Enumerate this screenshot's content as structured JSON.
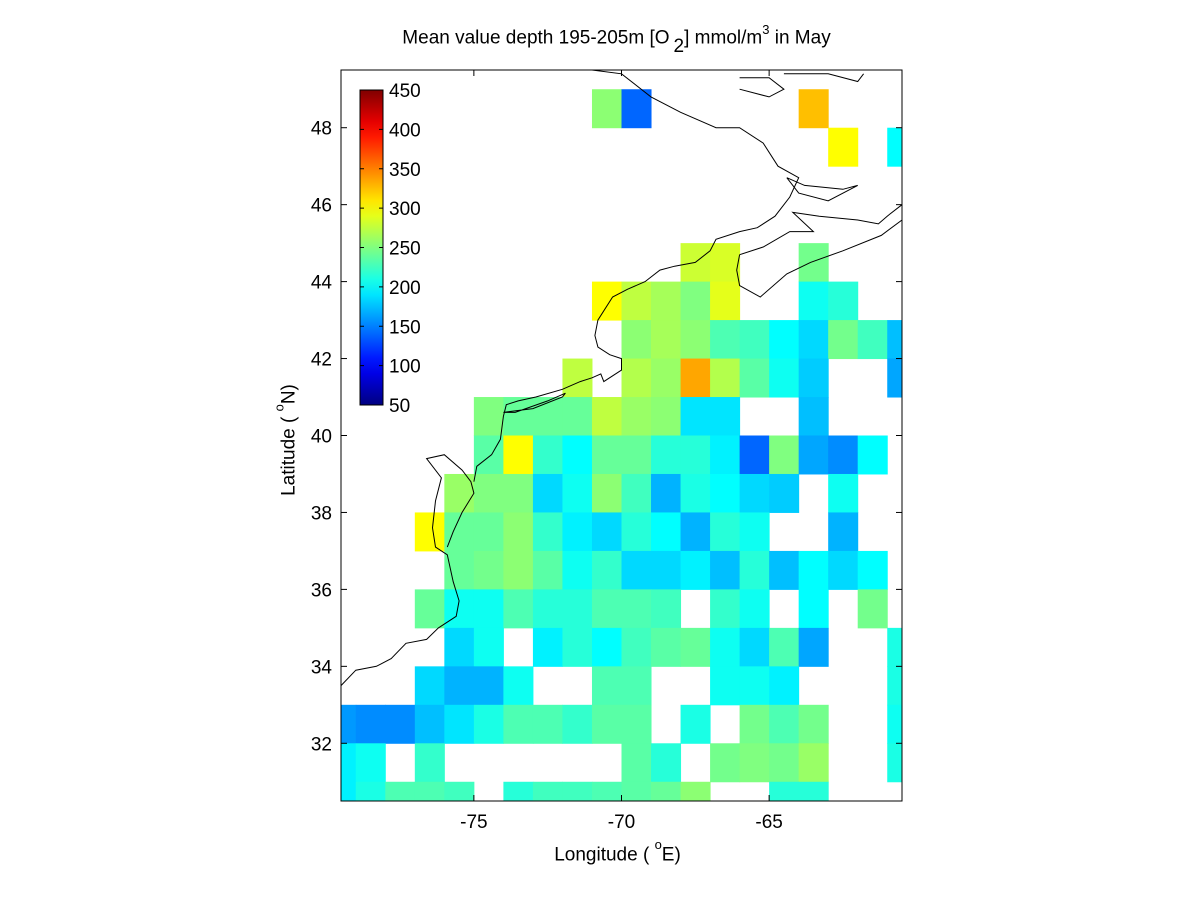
{
  "chart_data": {
    "type": "heatmap",
    "title_prefix": "Mean value depth 195-205m [O",
    "title_subscript": "2",
    "title_unit": "] mmol/m",
    "title_sup": "3",
    "title_suffix": " in May",
    "xlabel_prefix": "Longitude ( ",
    "xlabel_sup": "o",
    "xlabel_suffix": "E)",
    "ylabel_prefix": "Latitude ( ",
    "ylabel_sup": "o",
    "ylabel_suffix": "N)",
    "xlim": [
      -79.5,
      -60.5
    ],
    "ylim": [
      30.5,
      49.5
    ],
    "xticks": [
      -75,
      -70,
      -65
    ],
    "yticks": [
      32,
      34,
      36,
      38,
      40,
      42,
      44,
      46,
      48
    ],
    "colorbar": {
      "colormap": "jet",
      "range": [
        50,
        450
      ],
      "ticks": [
        50,
        100,
        150,
        200,
        250,
        300,
        350,
        400,
        450
      ]
    },
    "cell_size_deg": 1,
    "cells": [
      [
        -70.5,
        48.5,
        255
      ],
      [
        -69.5,
        48.5,
        140
      ],
      [
        -63.5,
        48.5,
        325
      ],
      [
        -62.5,
        47.5,
        300
      ],
      [
        -60.5,
        47.5,
        200
      ],
      [
        -67.5,
        44.5,
        280
      ],
      [
        -66.5,
        44.5,
        285
      ],
      [
        -63.5,
        44.5,
        245
      ],
      [
        -70.5,
        43.5,
        300
      ],
      [
        -69.5,
        43.5,
        275
      ],
      [
        -68.5,
        43.5,
        265
      ],
      [
        -67.5,
        43.5,
        250
      ],
      [
        -66.5,
        43.5,
        290
      ],
      [
        -63.5,
        43.5,
        205
      ],
      [
        -62.5,
        43.5,
        215
      ],
      [
        -69.5,
        42.5,
        255
      ],
      [
        -68.5,
        42.5,
        265
      ],
      [
        -67.5,
        42.5,
        255
      ],
      [
        -66.5,
        42.5,
        230
      ],
      [
        -65.5,
        42.5,
        225
      ],
      [
        -64.5,
        42.5,
        200
      ],
      [
        -63.5,
        42.5,
        185
      ],
      [
        -62.5,
        42.5,
        245
      ],
      [
        -61.5,
        42.5,
        225
      ],
      [
        -60.5,
        42.5,
        175
      ],
      [
        -71.5,
        41.5,
        275
      ],
      [
        -69.5,
        41.5,
        270
      ],
      [
        -68.5,
        41.5,
        260
      ],
      [
        -67.5,
        41.5,
        335
      ],
      [
        -66.5,
        41.5,
        270
      ],
      [
        -65.5,
        41.5,
        235
      ],
      [
        -64.5,
        41.5,
        205
      ],
      [
        -63.5,
        41.5,
        180
      ],
      [
        -60.5,
        41.5,
        165
      ],
      [
        -74.5,
        40.5,
        250
      ],
      [
        -73.5,
        40.5,
        240
      ],
      [
        -72.5,
        40.5,
        240
      ],
      [
        -71.5,
        40.5,
        240
      ],
      [
        -70.5,
        40.5,
        275
      ],
      [
        -69.5,
        40.5,
        260
      ],
      [
        -68.5,
        40.5,
        255
      ],
      [
        -67.5,
        40.5,
        190
      ],
      [
        -66.5,
        40.5,
        190
      ],
      [
        -63.5,
        40.5,
        175
      ],
      [
        -74.5,
        39.5,
        235
      ],
      [
        -73.5,
        39.5,
        300
      ],
      [
        -72.5,
        39.5,
        220
      ],
      [
        -71.5,
        39.5,
        200
      ],
      [
        -70.5,
        39.5,
        240
      ],
      [
        -69.5,
        39.5,
        240
      ],
      [
        -68.5,
        39.5,
        215
      ],
      [
        -67.5,
        39.5,
        215
      ],
      [
        -66.5,
        39.5,
        195
      ],
      [
        -65.5,
        39.5,
        140
      ],
      [
        -64.5,
        39.5,
        250
      ],
      [
        -63.5,
        39.5,
        165
      ],
      [
        -62.5,
        39.5,
        155
      ],
      [
        -61.5,
        39.5,
        200
      ],
      [
        -75.5,
        38.5,
        260
      ],
      [
        -74.5,
        38.5,
        250
      ],
      [
        -73.5,
        38.5,
        250
      ],
      [
        -72.5,
        38.5,
        185
      ],
      [
        -71.5,
        38.5,
        205
      ],
      [
        -70.5,
        38.5,
        255
      ],
      [
        -69.5,
        38.5,
        225
      ],
      [
        -68.5,
        38.5,
        170
      ],
      [
        -67.5,
        38.5,
        210
      ],
      [
        -66.5,
        38.5,
        200
      ],
      [
        -65.5,
        38.5,
        185
      ],
      [
        -64.5,
        38.5,
        180
      ],
      [
        -62.5,
        38.5,
        205
      ],
      [
        -76.5,
        37.5,
        300
      ],
      [
        -75.5,
        37.5,
        240
      ],
      [
        -74.5,
        37.5,
        240
      ],
      [
        -73.5,
        37.5,
        255
      ],
      [
        -72.5,
        37.5,
        220
      ],
      [
        -71.5,
        37.5,
        195
      ],
      [
        -70.5,
        37.5,
        185
      ],
      [
        -69.5,
        37.5,
        215
      ],
      [
        -68.5,
        37.5,
        200
      ],
      [
        -67.5,
        37.5,
        170
      ],
      [
        -66.5,
        37.5,
        215
      ],
      [
        -65.5,
        37.5,
        205
      ],
      [
        -62.5,
        37.5,
        170
      ],
      [
        -75.5,
        36.5,
        240
      ],
      [
        -74.5,
        36.5,
        245
      ],
      [
        -73.5,
        36.5,
        255
      ],
      [
        -72.5,
        36.5,
        235
      ],
      [
        -71.5,
        36.5,
        205
      ],
      [
        -70.5,
        36.5,
        220
      ],
      [
        -69.5,
        36.5,
        185
      ],
      [
        -68.5,
        36.5,
        185
      ],
      [
        -67.5,
        36.5,
        195
      ],
      [
        -66.5,
        36.5,
        175
      ],
      [
        -65.5,
        36.5,
        215
      ],
      [
        -64.5,
        36.5,
        175
      ],
      [
        -63.5,
        36.5,
        200
      ],
      [
        -62.5,
        36.5,
        185
      ],
      [
        -61.5,
        36.5,
        200
      ],
      [
        -76.5,
        35.5,
        240
      ],
      [
        -75.5,
        35.5,
        205
      ],
      [
        -74.5,
        35.5,
        205
      ],
      [
        -73.5,
        35.5,
        230
      ],
      [
        -72.5,
        35.5,
        215
      ],
      [
        -71.5,
        35.5,
        215
      ],
      [
        -70.5,
        35.5,
        230
      ],
      [
        -69.5,
        35.5,
        230
      ],
      [
        -68.5,
        35.5,
        225
      ],
      [
        -66.5,
        35.5,
        220
      ],
      [
        -65.5,
        35.5,
        205
      ],
      [
        -63.5,
        35.5,
        200
      ],
      [
        -61.5,
        35.5,
        245
      ],
      [
        -75.5,
        34.5,
        185
      ],
      [
        -74.5,
        34.5,
        205
      ],
      [
        -72.5,
        34.5,
        195
      ],
      [
        -71.5,
        34.5,
        215
      ],
      [
        -70.5,
        34.5,
        200
      ],
      [
        -69.5,
        34.5,
        225
      ],
      [
        -68.5,
        34.5,
        235
      ],
      [
        -67.5,
        34.5,
        240
      ],
      [
        -66.5,
        34.5,
        205
      ],
      [
        -65.5,
        34.5,
        185
      ],
      [
        -64.5,
        34.5,
        230
      ],
      [
        -63.5,
        34.5,
        165
      ],
      [
        -60.5,
        34.5,
        210
      ],
      [
        -76.5,
        33.5,
        185
      ],
      [
        -75.5,
        33.5,
        170
      ],
      [
        -74.5,
        33.5,
        170
      ],
      [
        -73.5,
        33.5,
        205
      ],
      [
        -70.5,
        33.5,
        230
      ],
      [
        -69.5,
        33.5,
        230
      ],
      [
        -66.5,
        33.5,
        205
      ],
      [
        -65.5,
        33.5,
        205
      ],
      [
        -64.5,
        33.5,
        195
      ],
      [
        -60.5,
        33.5,
        210
      ],
      [
        -79.5,
        32.5,
        160
      ],
      [
        -78.5,
        32.5,
        155
      ],
      [
        -77.5,
        32.5,
        155
      ],
      [
        -76.5,
        32.5,
        175
      ],
      [
        -75.5,
        32.5,
        190
      ],
      [
        -74.5,
        32.5,
        210
      ],
      [
        -73.5,
        32.5,
        230
      ],
      [
        -72.5,
        32.5,
        230
      ],
      [
        -71.5,
        32.5,
        220
      ],
      [
        -70.5,
        32.5,
        235
      ],
      [
        -69.5,
        32.5,
        235
      ],
      [
        -67.5,
        32.5,
        210
      ],
      [
        -65.5,
        32.5,
        245
      ],
      [
        -64.5,
        32.5,
        230
      ],
      [
        -63.5,
        32.5,
        245
      ],
      [
        -60.5,
        32.5,
        205
      ],
      [
        -79.5,
        31.5,
        195
      ],
      [
        -78.5,
        31.5,
        205
      ],
      [
        -76.5,
        31.5,
        220
      ],
      [
        -69.5,
        31.5,
        235
      ],
      [
        -68.5,
        31.5,
        215
      ],
      [
        -66.5,
        31.5,
        245
      ],
      [
        -65.5,
        31.5,
        250
      ],
      [
        -64.5,
        31.5,
        245
      ],
      [
        -63.5,
        31.5,
        260
      ],
      [
        -60.5,
        31.5,
        210
      ],
      [
        -79.5,
        30.5,
        195
      ],
      [
        -78.5,
        30.5,
        210
      ],
      [
        -77.5,
        30.5,
        230
      ],
      [
        -76.5,
        30.5,
        230
      ],
      [
        -75.5,
        30.5,
        225
      ],
      [
        -73.5,
        30.5,
        215
      ],
      [
        -72.5,
        30.5,
        225
      ],
      [
        -71.5,
        30.5,
        225
      ],
      [
        -70.5,
        30.5,
        230
      ],
      [
        -69.5,
        30.5,
        235
      ],
      [
        -68.5,
        30.5,
        240
      ],
      [
        -67.5,
        30.5,
        255
      ],
      [
        -64.5,
        30.5,
        215
      ],
      [
        -63.5,
        30.5,
        215
      ]
    ],
    "coastline": [
      [
        [
          -79.5,
          33.5
        ],
        [
          -79.0,
          33.9
        ],
        [
          -78.3,
          34.0
        ],
        [
          -77.8,
          34.2
        ],
        [
          -77.3,
          34.6
        ],
        [
          -76.6,
          34.7
        ],
        [
          -76.2,
          35.0
        ],
        [
          -75.6,
          35.3
        ],
        [
          -75.5,
          35.7
        ],
        [
          -75.7,
          36.2
        ],
        [
          -75.9,
          36.9
        ],
        [
          -76.3,
          37.1
        ],
        [
          -76.4,
          37.6
        ],
        [
          -76.3,
          38.3
        ],
        [
          -76.1,
          38.9
        ],
        [
          -76.6,
          39.4
        ],
        [
          -76.0,
          39.5
        ],
        [
          -75.4,
          39.1
        ],
        [
          -75.1,
          38.8
        ],
        [
          -75.0,
          38.5
        ],
        [
          -75.4,
          38.0
        ],
        [
          -75.7,
          37.5
        ],
        [
          -75.9,
          37.1
        ]
      ],
      [
        [
          -75.0,
          38.8
        ],
        [
          -74.9,
          39.2
        ],
        [
          -74.4,
          39.5
        ],
        [
          -74.1,
          39.9
        ],
        [
          -74.0,
          40.5
        ],
        [
          -73.9,
          40.8
        ],
        [
          -73.5,
          40.9
        ],
        [
          -72.9,
          41.0
        ],
        [
          -72.0,
          41.2
        ],
        [
          -71.4,
          41.4
        ],
        [
          -71.0,
          41.5
        ],
        [
          -70.7,
          41.6
        ],
        [
          -70.6,
          41.4
        ],
        [
          -70.0,
          41.7
        ],
        [
          -70.0,
          42.0
        ],
        [
          -70.4,
          42.1
        ],
        [
          -70.8,
          42.3
        ],
        [
          -70.9,
          42.6
        ],
        [
          -70.8,
          43.0
        ],
        [
          -70.3,
          43.6
        ],
        [
          -69.8,
          43.8
        ],
        [
          -69.2,
          44.0
        ],
        [
          -68.7,
          44.3
        ],
        [
          -68.2,
          44.4
        ],
        [
          -67.5,
          44.5
        ],
        [
          -67.0,
          44.8
        ],
        [
          -66.8,
          45.1
        ],
        [
          -66.0,
          45.3
        ],
        [
          -65.4,
          45.4
        ],
        [
          -64.8,
          45.7
        ],
        [
          -64.3,
          46.2
        ],
        [
          -64.0,
          46.7
        ],
        [
          -64.7,
          47.0
        ],
        [
          -65.2,
          47.6
        ],
        [
          -66.0,
          48.0
        ],
        [
          -66.8,
          48.0
        ],
        [
          -68.0,
          48.4
        ],
        [
          -69.0,
          48.8
        ],
        [
          -70.0,
          49.4
        ],
        [
          -71.0,
          49.5
        ]
      ],
      [
        [
          -74.0,
          40.6
        ],
        [
          -73.0,
          40.7
        ],
        [
          -72.0,
          41.0
        ],
        [
          -71.9,
          41.1
        ],
        [
          -72.5,
          40.9
        ],
        [
          -73.6,
          40.6
        ],
        [
          -74.0,
          40.6
        ]
      ],
      [
        [
          -66.0,
          44.7
        ],
        [
          -65.2,
          44.9
        ],
        [
          -64.3,
          45.3
        ],
        [
          -63.5,
          45.3
        ],
        [
          -64.2,
          45.8
        ],
        [
          -63.3,
          45.7
        ],
        [
          -62.0,
          45.6
        ],
        [
          -61.3,
          45.5
        ],
        [
          -61.0,
          45.7
        ],
        [
          -60.5,
          46.0
        ],
        [
          -60.5,
          45.6
        ],
        [
          -61.2,
          45.2
        ],
        [
          -62.5,
          44.8
        ],
        [
          -63.6,
          44.5
        ],
        [
          -64.4,
          44.2
        ],
        [
          -65.3,
          43.6
        ],
        [
          -66.0,
          43.9
        ],
        [
          -66.1,
          44.3
        ],
        [
          -66.0,
          44.7
        ]
      ],
      [
        [
          -64.4,
          46.7
        ],
        [
          -63.8,
          46.5
        ],
        [
          -62.5,
          46.4
        ],
        [
          -62.0,
          46.5
        ],
        [
          -63.0,
          46.1
        ],
        [
          -64.0,
          46.3
        ],
        [
          -64.4,
          46.7
        ]
      ],
      [
        [
          -64.5,
          49.4
        ],
        [
          -63.0,
          49.4
        ],
        [
          -62.0,
          49.2
        ],
        [
          -61.8,
          49.4
        ]
      ],
      [
        [
          -66.0,
          49.3
        ],
        [
          -65.0,
          49.3
        ],
        [
          -64.5,
          49.0
        ],
        [
          -65.0,
          48.8
        ],
        [
          -66.0,
          49.0
        ]
      ]
    ]
  }
}
